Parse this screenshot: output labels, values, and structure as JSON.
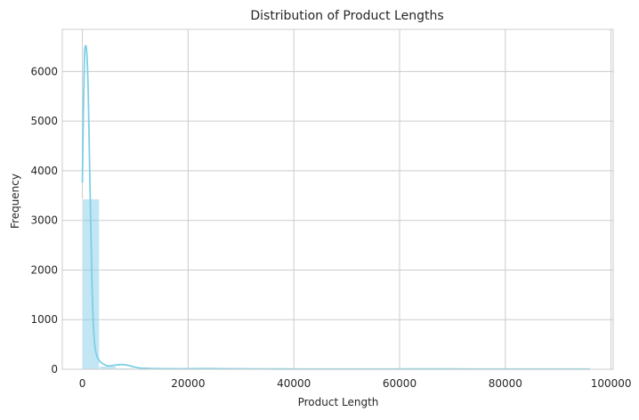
{
  "chart_data": {
    "type": "bar",
    "title": "Distribution of Product Lengths",
    "xlabel": "Product Length",
    "ylabel": "Frequency",
    "xlim": [
      -3800,
      100400
    ],
    "ylim": [
      0,
      6850
    ],
    "x_ticks": [
      {
        "value": 0,
        "label": "0"
      },
      {
        "value": 20000,
        "label": "20000"
      },
      {
        "value": 40000,
        "label": "40000"
      },
      {
        "value": 60000,
        "label": "60000"
      },
      {
        "value": 80000,
        "label": "80000"
      },
      {
        "value": 100000,
        "label": "100000"
      }
    ],
    "y_ticks": [
      {
        "value": 0,
        "label": "0"
      },
      {
        "value": 1000,
        "label": "1000"
      },
      {
        "value": 2000,
        "label": "2000"
      },
      {
        "value": 3000,
        "label": "3000"
      },
      {
        "value": 4000,
        "label": "4000"
      },
      {
        "value": 5000,
        "label": "5000"
      },
      {
        "value": 6000,
        "label": "6000"
      }
    ],
    "grid": true,
    "histogram": {
      "bin_width": 3200,
      "bins": [
        {
          "x0": 0,
          "x1": 3200,
          "count": 3430
        },
        {
          "x0": 3200,
          "x1": 6400,
          "count": 60
        },
        {
          "x0": 6400,
          "x1": 9600,
          "count": 25
        },
        {
          "x0": 9600,
          "x1": 12800,
          "count": 12
        },
        {
          "x0": 12800,
          "x1": 16000,
          "count": 6
        },
        {
          "x0": 16000,
          "x1": 19200,
          "count": 4
        },
        {
          "x0": 19200,
          "x1": 22400,
          "count": 3
        },
        {
          "x0": 22400,
          "x1": 25600,
          "count": 3
        },
        {
          "x0": 25600,
          "x1": 28800,
          "count": 2
        },
        {
          "x0": 28800,
          "x1": 32000,
          "count": 1
        },
        {
          "x0": 32000,
          "x1": 35200,
          "count": 1
        },
        {
          "x0": 35200,
          "x1": 38400,
          "count": 1
        },
        {
          "x0": 38400,
          "x1": 41600,
          "count": 1
        },
        {
          "x0": 41600,
          "x1": 44800,
          "count": 1
        },
        {
          "x0": 44800,
          "x1": 48000,
          "count": 1
        },
        {
          "x0": 48000,
          "x1": 51200,
          "count": 1
        },
        {
          "x0": 51200,
          "x1": 54400,
          "count": 1
        },
        {
          "x0": 54400,
          "x1": 57600,
          "count": 1
        },
        {
          "x0": 57600,
          "x1": 60800,
          "count": 1
        },
        {
          "x0": 60800,
          "x1": 64000,
          "count": 1
        },
        {
          "x0": 64000,
          "x1": 67200,
          "count": 1
        },
        {
          "x0": 67200,
          "x1": 70400,
          "count": 1
        },
        {
          "x0": 70400,
          "x1": 73600,
          "count": 1
        },
        {
          "x0": 73600,
          "x1": 76800,
          "count": 1
        },
        {
          "x0": 76800,
          "x1": 80000,
          "count": 1
        },
        {
          "x0": 80000,
          "x1": 83200,
          "count": 1
        },
        {
          "x0": 83200,
          "x1": 86400,
          "count": 1
        },
        {
          "x0": 86400,
          "x1": 89600,
          "count": 1
        },
        {
          "x0": 89600,
          "x1": 92800,
          "count": 1
        },
        {
          "x0": 92800,
          "x1": 96000,
          "count": 1
        }
      ],
      "color": "#87CEEB",
      "opacity": 0.5
    },
    "kde": {
      "color": "#7ecfe5",
      "points": [
        {
          "x": 0,
          "y": 3760
        },
        {
          "x": 200,
          "y": 5250
        },
        {
          "x": 400,
          "y": 6300
        },
        {
          "x": 600,
          "y": 6520
        },
        {
          "x": 850,
          "y": 6350
        },
        {
          "x": 1100,
          "y": 5600
        },
        {
          "x": 1350,
          "y": 4200
        },
        {
          "x": 1600,
          "y": 2800
        },
        {
          "x": 1850,
          "y": 1600
        },
        {
          "x": 2100,
          "y": 850
        },
        {
          "x": 2400,
          "y": 430
        },
        {
          "x": 2800,
          "y": 250
        },
        {
          "x": 3300,
          "y": 160
        },
        {
          "x": 3900,
          "y": 110
        },
        {
          "x": 4600,
          "y": 75
        },
        {
          "x": 5400,
          "y": 70
        },
        {
          "x": 6300,
          "y": 85
        },
        {
          "x": 7200,
          "y": 95
        },
        {
          "x": 8100,
          "y": 90
        },
        {
          "x": 9000,
          "y": 70
        },
        {
          "x": 10000,
          "y": 40
        },
        {
          "x": 11000,
          "y": 25
        },
        {
          "x": 12500,
          "y": 18
        },
        {
          "x": 14500,
          "y": 12
        },
        {
          "x": 16500,
          "y": 10
        },
        {
          "x": 19000,
          "y": 9
        },
        {
          "x": 21500,
          "y": 12
        },
        {
          "x": 24000,
          "y": 14
        },
        {
          "x": 26500,
          "y": 10
        },
        {
          "x": 30000,
          "y": 8
        },
        {
          "x": 36000,
          "y": 6
        },
        {
          "x": 42000,
          "y": 5
        },
        {
          "x": 50000,
          "y": 5
        },
        {
          "x": 58000,
          "y": 5
        },
        {
          "x": 66000,
          "y": 6
        },
        {
          "x": 74000,
          "y": 5
        },
        {
          "x": 82000,
          "y": 5
        },
        {
          "x": 90000,
          "y": 5
        },
        {
          "x": 96000,
          "y": 4
        }
      ]
    }
  }
}
